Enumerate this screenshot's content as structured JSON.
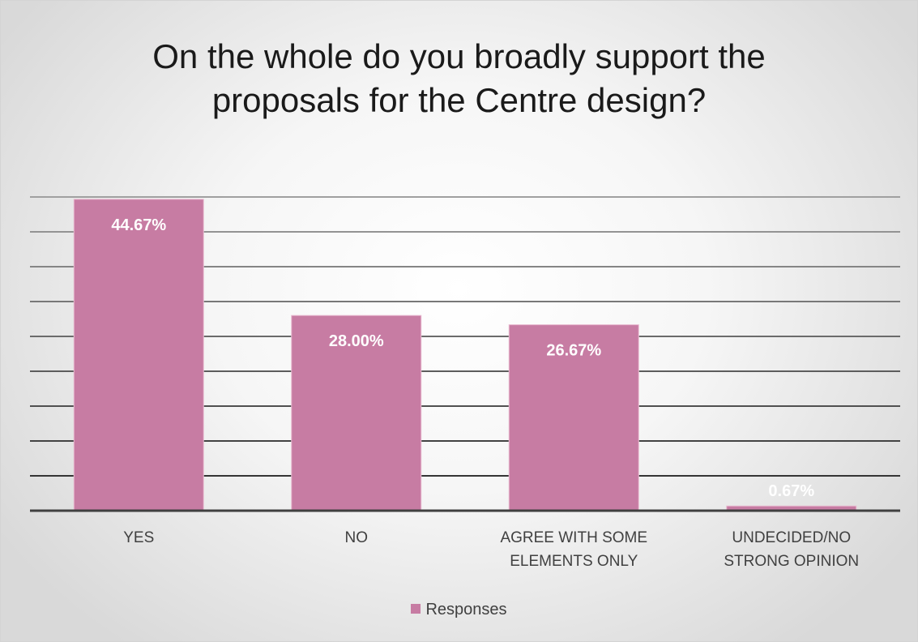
{
  "chart_data": {
    "type": "bar",
    "title": "On the whole do you broadly support the\nproposals for the Centre design?",
    "categories": [
      [
        "YES"
      ],
      [
        "NO"
      ],
      [
        "AGREE WITH SOME",
        "ELEMENTS ONLY"
      ],
      [
        "UNDECIDED/NO",
        "STRONG OPINION"
      ]
    ],
    "series": [
      {
        "name": "Responses",
        "values": [
          44.67,
          28.0,
          26.67,
          0.67
        ],
        "labels": [
          "44.67%",
          "28.00%",
          "26.67%",
          "0.67%"
        ]
      }
    ],
    "ylim": [
      0,
      45
    ],
    "grid": true,
    "legend_position": "bottom",
    "bar_color": "#c77ca3",
    "label_color": "#ffffff"
  }
}
